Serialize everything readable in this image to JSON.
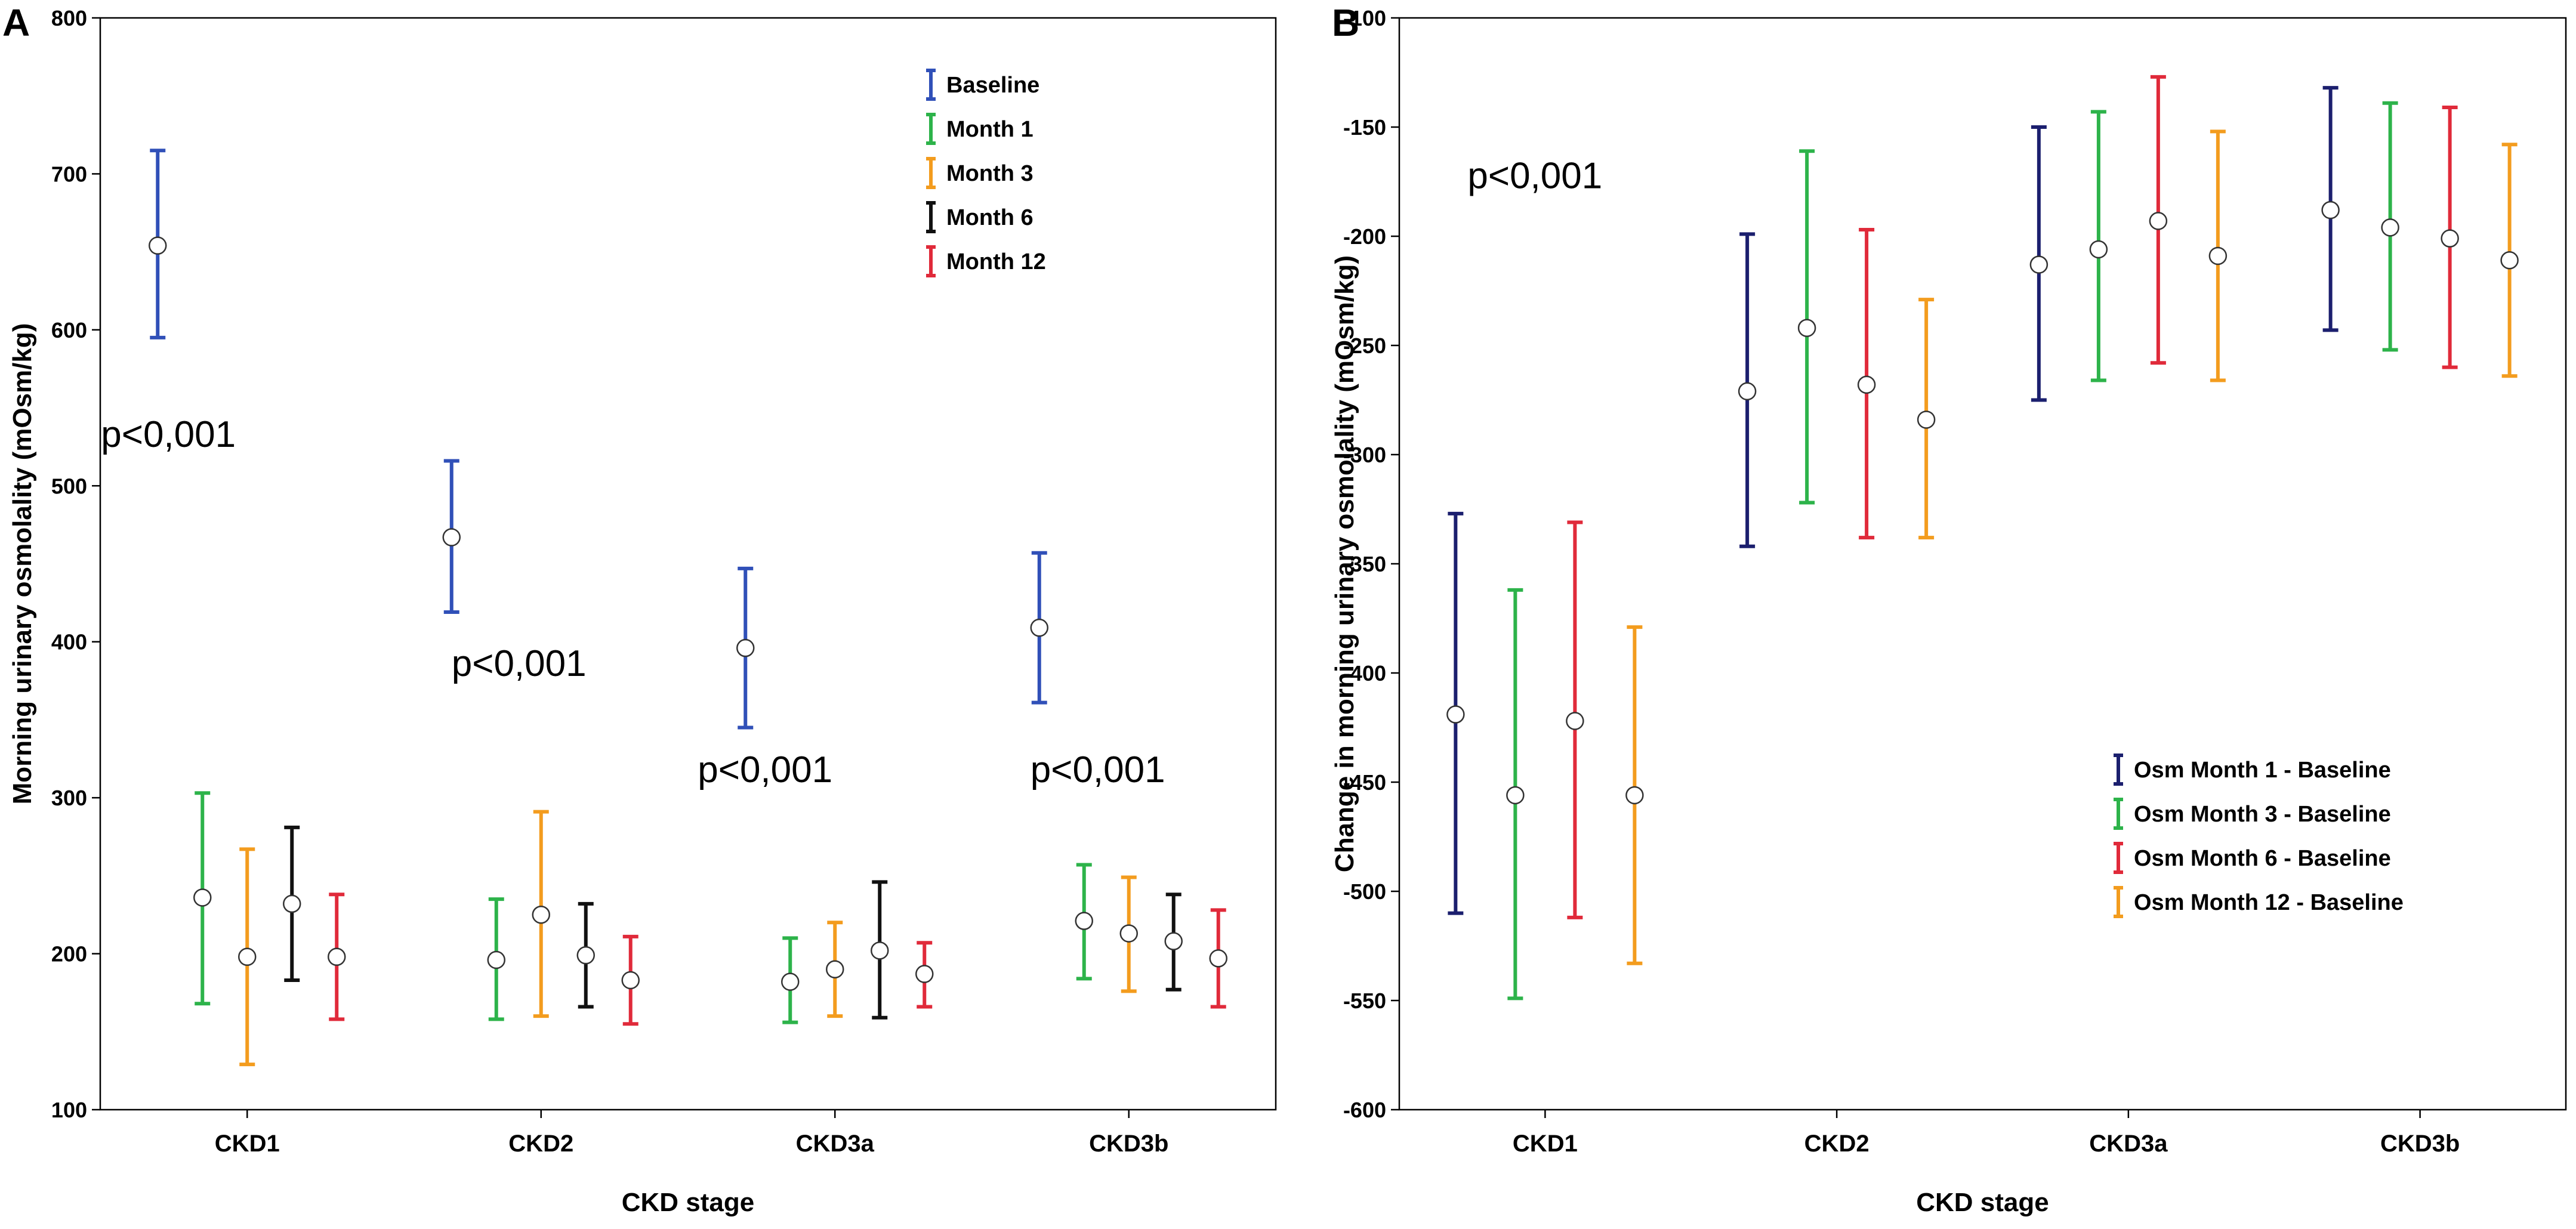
{
  "chart_data": [
    {
      "type": "errorbar",
      "panel_label": "A",
      "xlabel": "CKD stage",
      "ylabel": "Morning urinary osmolality (mOsm/kg)",
      "ylim": [
        100,
        800
      ],
      "yticks": [
        100,
        200,
        300,
        400,
        500,
        600,
        700,
        800
      ],
      "categories": [
        "CKD1",
        "CKD2",
        "CKD3a",
        "CKD3b"
      ],
      "legend_position": "top-right",
      "series": [
        {
          "name": "Baseline",
          "color": "#3050b8",
          "values": [
            654,
            467,
            396,
            409
          ],
          "lower": [
            595,
            419,
            345,
            361
          ],
          "upper": [
            715,
            516,
            447,
            457
          ]
        },
        {
          "name": "Month 1",
          "color": "#2db34a",
          "values": [
            236,
            196,
            182,
            221
          ],
          "lower": [
            168,
            158,
            156,
            184
          ],
          "upper": [
            303,
            235,
            210,
            257
          ]
        },
        {
          "name": "Month 3",
          "color": "#f39c1e",
          "values": [
            198,
            225,
            190,
            213
          ],
          "lower": [
            129,
            160,
            160,
            176
          ],
          "upper": [
            267,
            291,
            220,
            249
          ]
        },
        {
          "name": "Month 6",
          "color": "#111111",
          "values": [
            232,
            199,
            202,
            208
          ],
          "lower": [
            183,
            166,
            159,
            177
          ],
          "upper": [
            281,
            232,
            246,
            238
          ]
        },
        {
          "name": "Month 12",
          "color": "#e02a3a",
          "values": [
            198,
            183,
            187,
            197
          ],
          "lower": [
            158,
            155,
            166,
            166
          ],
          "upper": [
            238,
            211,
            207,
            228
          ]
        }
      ],
      "annotations": [
        {
          "text": "p<0,001",
          "category": "CKD1",
          "y": 525
        },
        {
          "text": "p<0,001",
          "category": "CKD2",
          "y": 378
        },
        {
          "text": "p<0,001",
          "category": "CKD3a",
          "y": 310
        },
        {
          "text": "p<0,001",
          "category": "CKD3b",
          "y": 310
        }
      ]
    },
    {
      "type": "errorbar",
      "panel_label": "B",
      "xlabel": "CKD stage",
      "ylabel": "Change in morning urinary osmolality (mOsm/kg)",
      "ylim": [
        -600,
        -100
      ],
      "yticks": [
        -600,
        -550,
        -500,
        -450,
        -400,
        -350,
        -300,
        -250,
        -200,
        -150,
        -100
      ],
      "categories": [
        "CKD1",
        "CKD2",
        "CKD3a",
        "CKD3b"
      ],
      "legend_position": "bottom-right",
      "series": [
        {
          "name": "Osm Month 1 - Baseline",
          "color": "#1b1f6e",
          "values": [
            -419,
            -271,
            -213,
            -188
          ],
          "lower": [
            -510,
            -342,
            -275,
            -243
          ],
          "upper": [
            -327,
            -199,
            -150,
            -132
          ]
        },
        {
          "name": "Osm Month 3 - Baseline",
          "color": "#2db34a",
          "values": [
            -456,
            -242,
            -206,
            -196
          ],
          "lower": [
            -549,
            -322,
            -266,
            -252
          ],
          "upper": [
            -362,
            -161,
            -143,
            -139
          ]
        },
        {
          "name": "Osm Month 6 - Baseline",
          "color": "#e02a3a",
          "values": [
            -422,
            -268,
            -193,
            -201
          ],
          "lower": [
            -512,
            -338,
            -258,
            -260
          ],
          "upper": [
            -331,
            -197,
            -127,
            -141
          ]
        },
        {
          "name": "Osm Month 12 - Baseline",
          "color": "#f39c1e",
          "values": [
            -456,
            -284,
            -209,
            -211
          ],
          "lower": [
            -533,
            -338,
            -266,
            -264
          ],
          "upper": [
            -379,
            -229,
            -152,
            -158
          ]
        }
      ],
      "annotations": [
        {
          "text": "p<0,001",
          "category": "CKD1",
          "y": -178
        }
      ]
    }
  ]
}
